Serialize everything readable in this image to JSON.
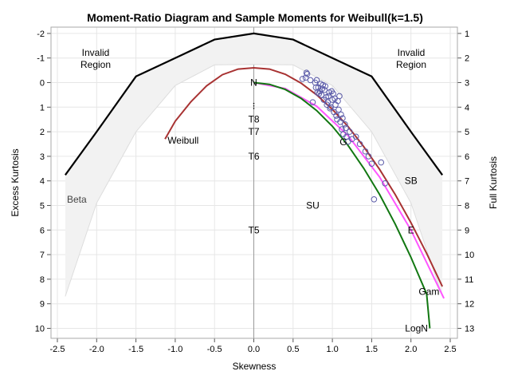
{
  "chart_data": {
    "type": "scatter",
    "title": "Moment-Ratio Diagram and Sample Moments for Weibull(k=1.5)",
    "xlabel": "Skewness",
    "ylabel": "Excess Kurtosis",
    "y2label": "Full Kurtosis",
    "xlim": [
      -2.5,
      2.5
    ],
    "ylim": [
      -2,
      10
    ],
    "y_reversed": true,
    "grid": true,
    "x_ticks": [
      "-2.5",
      "-2.0",
      "-1.5",
      "-1.0",
      "-0.5",
      "0.0",
      "0.5",
      "1.0",
      "1.5",
      "2.0",
      "2.5"
    ],
    "y_ticks": [
      "-2",
      "-1",
      "0",
      "1",
      "2",
      "3",
      "4",
      "5",
      "6",
      "7",
      "8",
      "9",
      "10"
    ],
    "y2_ticks": [
      "1",
      "2",
      "3",
      "4",
      "5",
      "6",
      "7",
      "8",
      "9",
      "10",
      "11",
      "12",
      "13"
    ],
    "regions": {
      "invalid_left": "Invalid\nRegion",
      "invalid_right": "Invalid\nRegion",
      "beta": "Beta"
    },
    "point_labels": [
      {
        "label": "N",
        "x": 0.0,
        "y": 0.0
      },
      {
        "label": "T8",
        "x": 0.0,
        "y": 1.5
      },
      {
        "label": "T7",
        "x": 0.0,
        "y": 2.0
      },
      {
        "label": "T6",
        "x": 0.0,
        "y": 3.0
      },
      {
        "label": "T5",
        "x": 0.0,
        "y": 6.0
      },
      {
        "label": "SU",
        "x": 0.75,
        "y": 5.0
      },
      {
        "label": "SB",
        "x": 2.0,
        "y": 4.0
      },
      {
        "label": "E",
        "x": 2.0,
        "y": 6.0
      },
      {
        "label": "G",
        "x": 1.14,
        "y": 2.42
      },
      {
        "label": "Weibull",
        "x": -0.9,
        "y": 2.35
      },
      {
        "label": "Gam",
        "x": 2.23,
        "y": 8.5
      },
      {
        "label": "LogN",
        "x": 2.07,
        "y": 10.0
      }
    ],
    "series": [
      {
        "name": "Weibull",
        "color": "#a83232",
        "x": [
          -1.13,
          -1.0,
          -0.8,
          -0.6,
          -0.4,
          -0.2,
          0.0,
          0.2,
          0.4,
          0.6,
          0.8,
          1.0,
          1.2,
          1.4,
          1.6,
          1.8,
          2.0,
          2.2,
          2.4
        ],
        "y": [
          2.3,
          1.57,
          0.78,
          0.13,
          -0.32,
          -0.55,
          -0.6,
          -0.55,
          -0.34,
          0.02,
          0.5,
          1.09,
          1.79,
          2.61,
          3.53,
          4.56,
          5.7,
          6.95,
          8.3
        ]
      },
      {
        "name": "Gam",
        "color": "#ff55ff",
        "x": [
          0.0,
          0.4,
          0.8,
          1.2,
          1.6,
          2.0,
          2.42
        ],
        "y": [
          0.0,
          0.24,
          0.96,
          2.16,
          3.84,
          6.0,
          8.78
        ]
      },
      {
        "name": "LogN",
        "color": "#117711",
        "x": [
          0.0,
          0.2,
          0.4,
          0.6,
          0.8,
          1.0,
          1.2,
          1.4,
          1.6,
          1.8,
          2.0,
          2.2,
          2.24
        ],
        "y": [
          0.0,
          0.07,
          0.28,
          0.64,
          1.14,
          1.78,
          2.56,
          3.49,
          4.55,
          5.76,
          7.11,
          8.6,
          10.0
        ]
      },
      {
        "name": "Beta",
        "color": "#f2f2f2",
        "x": [
          -2.4,
          -2.0,
          -1.5,
          -1.0,
          -0.5,
          0.0,
          0.5,
          1.0,
          1.5,
          2.0,
          2.4
        ],
        "y": [
          8.7,
          4.9,
          2.0,
          0.12,
          -0.72,
          -0.74,
          -0.72,
          0.12,
          2.0,
          4.9,
          8.7
        ]
      },
      {
        "name": "Boundary",
        "color": "#000000",
        "x": [
          -2.4,
          -2.0,
          -1.5,
          -1.0,
          -0.5,
          0.0,
          0.5,
          1.0,
          1.5,
          2.0,
          2.4
        ],
        "y": [
          3.76,
          2.0,
          -0.25,
          -1.0,
          -1.75,
          -2.0,
          -1.75,
          -1.0,
          -0.25,
          2.0,
          3.76
        ]
      }
    ],
    "sample_points": {
      "color": "#5a5aa8",
      "x": [
        0.67,
        0.68,
        0.66,
        0.62,
        0.75,
        0.78,
        0.8,
        0.82,
        0.84,
        0.86,
        0.88,
        0.9,
        0.92,
        0.94,
        0.96,
        0.98,
        1.0,
        1.02,
        1.04,
        1.06,
        1.08,
        1.1,
        1.12,
        1.14,
        1.16,
        1.18,
        1.2,
        1.25,
        1.3,
        1.35,
        1.42,
        1.46,
        1.5,
        1.62,
        1.67,
        1.53,
        0.79,
        0.83,
        0.87,
        0.91,
        0.95,
        0.99,
        1.03,
        1.07,
        1.11,
        0.85,
        0.93,
        1.01,
        1.09,
        0.97,
        1.05,
        0.81,
        0.89,
        1.13,
        1.17,
        1.22,
        0.72
      ],
      "y": [
        -0.4,
        -0.35,
        -0.2,
        -0.15,
        0.8,
        0.0,
        -0.1,
        0.2,
        0.35,
        0.5,
        0.1,
        0.3,
        0.6,
        0.8,
        0.4,
        1.0,
        0.7,
        1.2,
        0.9,
        1.5,
        1.1,
        1.6,
        1.9,
        2.1,
        1.7,
        2.2,
        2.4,
        2.3,
        2.2,
        2.5,
        2.8,
        3.0,
        3.3,
        3.25,
        4.1,
        4.75,
        0.2,
        0.45,
        0.25,
        0.15,
        0.55,
        0.35,
        0.65,
        0.75,
        1.3,
        0.05,
        0.9,
        0.45,
        0.55,
        1.05,
        1.35,
        0.4,
        0.7,
        1.45,
        1.85,
        2.0,
        -0.1
      ]
    }
  }
}
